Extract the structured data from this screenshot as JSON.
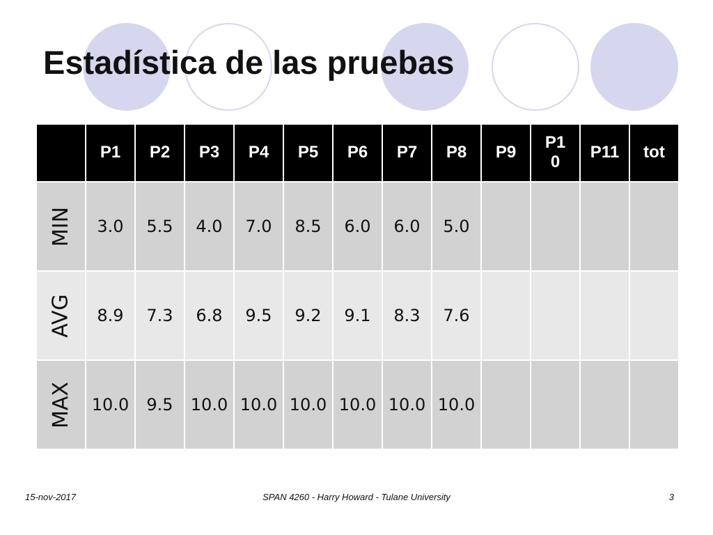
{
  "title": "Estadística de las pruebas",
  "table": {
    "header": [
      "",
      "P1",
      "P2",
      "P3",
      "P4",
      "P5",
      "P6",
      "P7",
      "P8",
      "P9",
      "P10",
      "P11",
      "tot"
    ],
    "rows": [
      {
        "label": "MIN",
        "cells": [
          "3.0",
          "5.5",
          "4.0",
          "7.0",
          "8.5",
          "6.0",
          "6.0",
          "5.0",
          "",
          "",
          "",
          ""
        ]
      },
      {
        "label": "AVG",
        "cells": [
          "8.9",
          "7.3",
          "6.8",
          "9.5",
          "9.2",
          "9.1",
          "8.3",
          "7.6",
          "",
          "",
          "",
          ""
        ]
      },
      {
        "label": "MAX",
        "cells": [
          "10.0",
          "9.5",
          "10.0",
          "10.0",
          "10.0",
          "10.0",
          "10.0",
          "10.0",
          "",
          "",
          "",
          ""
        ]
      }
    ]
  },
  "footer": {
    "date": "15-nov-2017",
    "center": "SPAN 4260 - Harry Howard - Tulane University",
    "page": "3"
  },
  "colors": {
    "circle": "#d7d6ef",
    "header_bg": "#000000",
    "row_dark": "#d2d2d2",
    "row_light": "#e8e8e8"
  }
}
